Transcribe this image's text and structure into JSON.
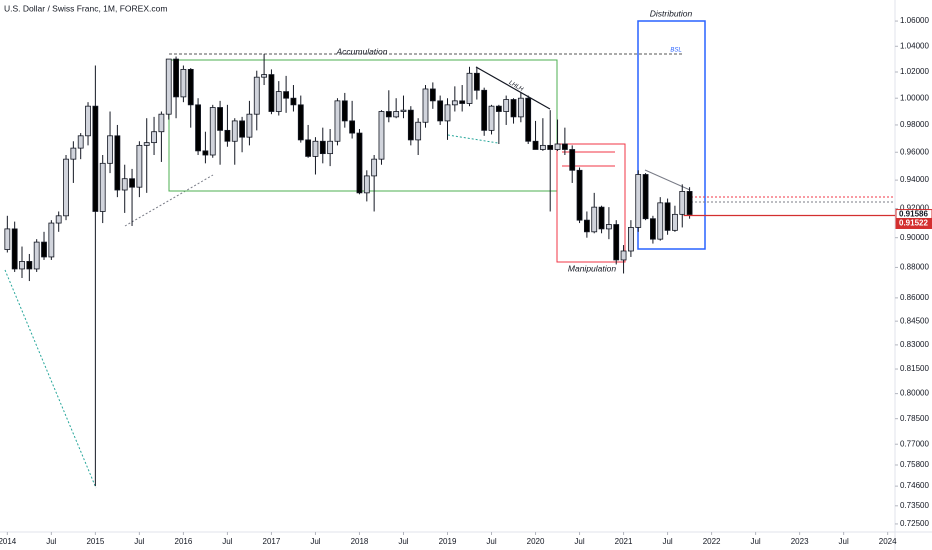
{
  "chart_data": {
    "type": "candlestick",
    "title": "U.S. Dollar / Swiss Franc, 1M, FOREX.com",
    "log": true,
    "grid": false,
    "up_color": "#d1d4dc",
    "down_color": "#000000",
    "border_color": "#131722",
    "x": [
      "2014-01",
      "2014-02",
      "2014-03",
      "2014-04",
      "2014-05",
      "2014-06",
      "2014-07",
      "2014-08",
      "2014-09",
      "2014-10",
      "2014-11",
      "2014-12",
      "2015-01",
      "2015-02",
      "2015-03",
      "2015-04",
      "2015-05",
      "2015-06",
      "2015-07",
      "2015-08",
      "2015-09",
      "2015-10",
      "2015-11",
      "2015-12",
      "2016-01",
      "2016-02",
      "2016-03",
      "2016-04",
      "2016-05",
      "2016-06",
      "2016-07",
      "2016-08",
      "2016-09",
      "2016-10",
      "2016-11",
      "2016-12",
      "2017-01",
      "2017-02",
      "2017-03",
      "2017-04",
      "2017-05",
      "2017-06",
      "2017-07",
      "2017-08",
      "2017-09",
      "2017-10",
      "2017-11",
      "2017-12",
      "2018-01",
      "2018-02",
      "2018-03",
      "2018-04",
      "2018-05",
      "2018-06",
      "2018-07",
      "2018-08",
      "2018-09",
      "2018-10",
      "2018-11",
      "2018-12",
      "2019-01",
      "2019-02",
      "2019-03",
      "2019-04",
      "2019-05",
      "2019-06",
      "2019-07",
      "2019-08",
      "2019-09",
      "2019-10",
      "2019-11",
      "2019-12",
      "2020-01",
      "2020-02",
      "2020-03",
      "2020-04",
      "2020-05",
      "2020-06",
      "2020-07",
      "2020-08",
      "2020-09",
      "2020-10",
      "2020-11",
      "2020-12",
      "2021-01",
      "2021-02",
      "2021-03",
      "2021-04",
      "2021-05",
      "2021-06",
      "2021-07",
      "2021-08",
      "2021-09",
      "2021-10"
    ],
    "open": [
      0.892,
      0.906,
      0.879,
      0.884,
      0.879,
      0.897,
      0.887,
      0.91,
      0.915,
      0.955,
      0.963,
      0.972,
      0.994,
      0.918,
      0.952,
      0.972,
      0.933,
      0.941,
      0.935,
      0.965,
      0.967,
      0.975,
      0.988,
      1.03,
      1.001,
      1.022,
      0.995,
      0.961,
      0.958,
      0.993,
      0.976,
      0.968,
      0.983,
      0.971,
      0.988,
      1.016,
      1.018,
      0.99,
      1.005,
      1.0,
      0.995,
      0.969,
      0.957,
      0.968,
      0.959,
      0.968,
      0.998,
      0.983,
      0.974,
      0.931,
      0.943,
      0.955,
      0.99,
      0.986,
      0.99,
      0.991,
      0.969,
      0.982,
      1.007,
      0.998,
      0.983,
      0.995,
      0.998,
      0.996,
      1.019,
      1.006,
      0.976,
      0.994,
      0.99,
      0.999,
      0.986,
      1.0,
      0.968,
      0.962,
      0.965,
      0.962,
      0.966,
      0.962,
      0.947,
      0.912,
      0.904,
      0.921,
      0.906,
      0.909,
      0.885,
      0.891,
      0.907,
      0.944,
      0.913,
      0.899,
      0.924,
      0.905,
      0.916,
      0.932
    ],
    "high": [
      0.915,
      0.911,
      0.894,
      0.889,
      0.899,
      0.904,
      0.912,
      0.918,
      0.958,
      0.968,
      0.974,
      0.997,
      1.025,
      0.958,
      0.99,
      0.98,
      0.951,
      0.948,
      0.968,
      0.985,
      0.986,
      0.99,
      1.03,
      1.032,
      1.025,
      1.023,
      1.0,
      0.975,
      0.995,
      0.998,
      0.995,
      0.985,
      0.986,
      0.998,
      1.021,
      1.034,
      1.022,
      1.013,
      1.017,
      1.01,
      1.002,
      0.98,
      0.971,
      0.978,
      0.977,
      1.0,
      1.004,
      0.998,
      0.977,
      0.947,
      0.958,
      0.991,
      1.006,
      1.0,
      1.002,
      0.994,
      0.985,
      1.01,
      1.012,
      1.002,
      1.0,
      1.009,
      1.01,
      1.024,
      1.024,
      1.008,
      0.995,
      0.995,
      1.002,
      1.0,
      1.004,
      1.002,
      0.983,
      0.985,
      0.991,
      0.984,
      0.978,
      0.965,
      0.949,
      0.918,
      0.931,
      0.922,
      0.921,
      0.912,
      0.895,
      0.912,
      0.947,
      0.945,
      0.915,
      0.928,
      0.927,
      0.922,
      0.937,
      0.935
    ],
    "low": [
      0.89,
      0.877,
      0.873,
      0.871,
      0.877,
      0.885,
      0.885,
      0.904,
      0.912,
      0.938,
      0.955,
      0.965,
      0.746,
      0.91,
      0.945,
      0.928,
      0.917,
      0.908,
      0.928,
      0.931,
      0.958,
      0.953,
      0.984,
      0.985,
      0.997,
      0.978,
      0.958,
      0.952,
      0.956,
      0.951,
      0.964,
      0.951,
      0.96,
      0.965,
      0.976,
      1.01,
      0.988,
      0.987,
      0.989,
      0.99,
      0.967,
      0.956,
      0.944,
      0.952,
      0.95,
      0.965,
      0.978,
      0.97,
      0.93,
      0.925,
      0.918,
      0.951,
      0.982,
      0.985,
      0.985,
      0.965,
      0.958,
      0.978,
      0.992,
      0.98,
      0.969,
      0.99,
      0.99,
      0.994,
      0.999,
      0.972,
      0.973,
      0.966,
      0.98,
      0.981,
      0.982,
      0.966,
      0.962,
      0.961,
      0.918,
      0.961,
      0.958,
      0.938,
      0.91,
      0.9,
      0.903,
      0.903,
      0.899,
      0.882,
      0.876,
      0.887,
      0.904,
      0.912,
      0.896,
      0.898,
      0.902,
      0.904,
      0.907,
      0.913
    ],
    "close": [
      0.906,
      0.879,
      0.884,
      0.879,
      0.897,
      0.887,
      0.91,
      0.915,
      0.955,
      0.963,
      0.972,
      0.994,
      0.918,
      0.952,
      0.972,
      0.933,
      0.941,
      0.935,
      0.965,
      0.967,
      0.975,
      0.988,
      1.03,
      1.001,
      1.022,
      0.995,
      0.961,
      0.958,
      0.993,
      0.976,
      0.968,
      0.983,
      0.971,
      0.988,
      1.016,
      1.018,
      0.99,
      1.005,
      1.0,
      0.995,
      0.969,
      0.957,
      0.968,
      0.959,
      0.968,
      0.998,
      0.983,
      0.974,
      0.931,
      0.943,
      0.955,
      0.99,
      0.986,
      0.99,
      0.991,
      0.969,
      0.982,
      1.007,
      0.998,
      0.983,
      0.995,
      0.998,
      0.996,
      1.019,
      1.006,
      0.976,
      0.994,
      0.99,
      0.999,
      0.986,
      1.0,
      0.968,
      0.962,
      0.965,
      0.962,
      0.966,
      0.962,
      0.947,
      0.912,
      0.904,
      0.921,
      0.906,
      0.909,
      0.885,
      0.891,
      0.907,
      0.944,
      0.913,
      0.899,
      0.924,
      0.905,
      0.916,
      0.932,
      0.91586
    ],
    "xlim": [
      "2013-12",
      "2024-02"
    ],
    "xticks": [
      {
        "value": "2014-01",
        "label": "2014"
      },
      {
        "value": "2014-07",
        "label": "Jul"
      },
      {
        "value": "2015-01",
        "label": "2015"
      },
      {
        "value": "2015-07",
        "label": "Jul"
      },
      {
        "value": "2016-01",
        "label": "2016"
      },
      {
        "value": "2016-07",
        "label": "Jul"
      },
      {
        "value": "2017-01",
        "label": "2017"
      },
      {
        "value": "2017-07",
        "label": "Jul"
      },
      {
        "value": "2018-01",
        "label": "2018"
      },
      {
        "value": "2018-07",
        "label": "Jul"
      },
      {
        "value": "2019-01",
        "label": "2019"
      },
      {
        "value": "2019-07",
        "label": "Jul"
      },
      {
        "value": "2020-01",
        "label": "2020"
      },
      {
        "value": "2020-07",
        "label": "Jul"
      },
      {
        "value": "2021-01",
        "label": "2021"
      },
      {
        "value": "2021-07",
        "label": "Jul"
      },
      {
        "value": "2022-01",
        "label": "2022"
      },
      {
        "value": "2022-07",
        "label": "Jul"
      },
      {
        "value": "2023-01",
        "label": "2023"
      },
      {
        "value": "2023-07",
        "label": "Jul"
      },
      {
        "value": "2024-01",
        "label": "2024"
      }
    ],
    "ylim": [
      0.7206,
      1.077
    ],
    "yticks": [
      {
        "value": 1.06,
        "label": "1.06000"
      },
      {
        "value": 1.04,
        "label": "1.04000"
      },
      {
        "value": 1.02,
        "label": "1.02000"
      },
      {
        "value": 1.0,
        "label": "1.00000"
      },
      {
        "value": 0.98,
        "label": "0.98000"
      },
      {
        "value": 0.96,
        "label": "0.96000"
      },
      {
        "value": 0.94,
        "label": "0.94000"
      },
      {
        "value": 0.92,
        "label": "0.92000"
      },
      {
        "value": 0.9,
        "label": "0.90000"
      },
      {
        "value": 0.88,
        "label": "0.88000"
      },
      {
        "value": 0.86,
        "label": "0.86000"
      },
      {
        "value": 0.845,
        "label": "0.84500"
      },
      {
        "value": 0.83,
        "label": "0.83000"
      },
      {
        "value": 0.815,
        "label": "0.81500"
      },
      {
        "value": 0.8,
        "label": "0.80000"
      },
      {
        "value": 0.785,
        "label": "0.78500"
      },
      {
        "value": 0.77,
        "label": "0.77000"
      },
      {
        "value": 0.758,
        "label": "0.75800"
      },
      {
        "value": 0.746,
        "label": "0.74600"
      },
      {
        "value": 0.735,
        "label": "0.73500"
      },
      {
        "value": 0.725,
        "label": "0.72500"
      }
    ],
    "price_labels": [
      0.91586,
      0.91522
    ],
    "annotations": {
      "accumulation": "Accumulation",
      "manipulation": "Manipulation",
      "distribution": "Distribution",
      "bsl": "BSL",
      "lhlh": "LHLH"
    }
  }
}
